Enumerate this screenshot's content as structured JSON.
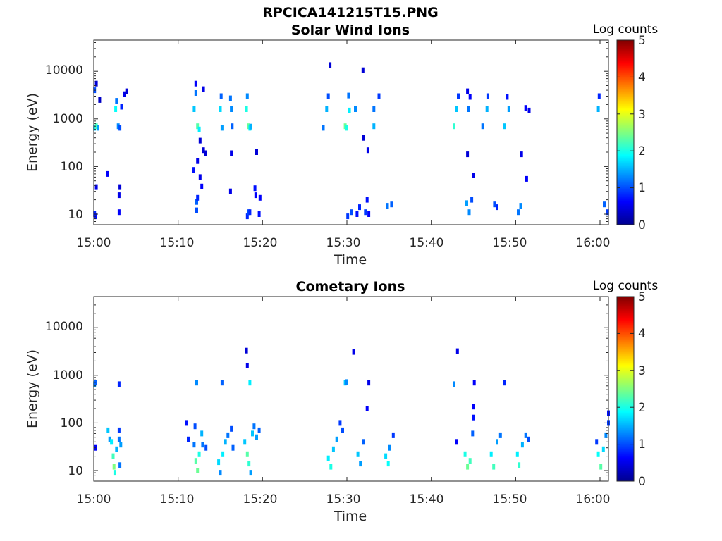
{
  "figure_title": "RPCICA141215T15.PNG",
  "chart_data": [
    {
      "type": "heatmap",
      "title": "Solar Wind Ions",
      "xlabel": "Time",
      "ylabel": "Energy (eV)",
      "x_ticks": [
        "15:00",
        "15:10",
        "15:20",
        "15:30",
        "15:40",
        "15:50",
        "16:00"
      ],
      "y_ticks": [
        "10",
        "100",
        "1000",
        "10000"
      ],
      "xlim": [
        "15:00",
        "16:01"
      ],
      "ylim": [
        6,
        45000
      ],
      "y_scale": "log",
      "colorbar": {
        "title": "Log counts",
        "min": 0,
        "max": 5,
        "ticks": [
          "0",
          "1",
          "2",
          "3",
          "4",
          "5"
        ],
        "colormap": "jet"
      },
      "cells_description": "time (minutes after 15:00), energy (eV), log counts",
      "cells": [
        [
          0.1,
          650,
          1.6
        ],
        [
          0.3,
          700,
          2.2
        ],
        [
          0.5,
          650,
          1.4
        ],
        [
          0.1,
          4000,
          1.0
        ],
        [
          0.3,
          5500,
          0.4
        ],
        [
          0.1,
          10,
          0.8
        ],
        [
          0.2,
          9,
          0.7
        ],
        [
          0.3,
          37,
          0.5
        ],
        [
          0.7,
          2500,
          0.3
        ],
        [
          1.6,
          70,
          0.6
        ],
        [
          2.6,
          1600,
          1.9
        ],
        [
          2.7,
          2400,
          1.2
        ],
        [
          2.9,
          700,
          1.3
        ],
        [
          3.1,
          650,
          1.0
        ],
        [
          3.0,
          11,
          0.6
        ],
        [
          3.0,
          25,
          0.5
        ],
        [
          3.1,
          37,
          0.4
        ],
        [
          3.3,
          1800,
          0.8
        ],
        [
          3.6,
          3300,
          0.5
        ],
        [
          3.9,
          3800,
          0.4
        ],
        [
          11.9,
          1600,
          1.6
        ],
        [
          12.1,
          3500,
          1.2
        ],
        [
          12.1,
          5500,
          0.6
        ],
        [
          12.3,
          700,
          2.3
        ],
        [
          12.5,
          600,
          1.8
        ],
        [
          12.2,
          12,
          1.0
        ],
        [
          12.2,
          18,
          1.1
        ],
        [
          12.3,
          22,
          0.8
        ],
        [
          11.8,
          85,
          0.7
        ],
        [
          12.3,
          130,
          0.5
        ],
        [
          12.8,
          38,
          0.6
        ],
        [
          12.6,
          60,
          0.5
        ],
        [
          13.0,
          4200,
          0.5
        ],
        [
          13.0,
          220,
          0.4
        ],
        [
          13.2,
          190,
          0.4
        ],
        [
          12.6,
          350,
          0.4
        ],
        [
          15.0,
          1600,
          1.7
        ],
        [
          15.1,
          3000,
          1.1
        ],
        [
          15.2,
          650,
          1.4
        ],
        [
          16.2,
          2700,
          1.2
        ],
        [
          16.3,
          1600,
          1.3
        ],
        [
          16.4,
          700,
          1.1
        ],
        [
          16.2,
          30,
          0.5
        ],
        [
          16.3,
          190,
          0.5
        ],
        [
          18.1,
          1600,
          2.0
        ],
        [
          18.2,
          3000,
          1.3
        ],
        [
          18.3,
          700,
          2.4
        ],
        [
          18.5,
          650,
          1.8
        ],
        [
          18.6,
          690,
          1.5
        ],
        [
          18.2,
          9,
          0.8
        ],
        [
          18.3,
          11,
          1.0
        ],
        [
          18.5,
          11,
          0.8
        ],
        [
          19.1,
          35,
          0.7
        ],
        [
          19.2,
          25,
          0.6
        ],
        [
          19.6,
          10,
          0.7
        ],
        [
          19.7,
          22,
          0.6
        ],
        [
          19.3,
          200,
          0.4
        ],
        [
          27.2,
          650,
          1.2
        ],
        [
          27.6,
          1600,
          1.5
        ],
        [
          27.8,
          3000,
          1.0
        ],
        [
          28.0,
          13500,
          0.4
        ],
        [
          29.8,
          700,
          2.4
        ],
        [
          30.0,
          650,
          2.0
        ],
        [
          30.3,
          1500,
          1.8
        ],
        [
          30.2,
          3100,
          1.2
        ],
        [
          30.1,
          9,
          0.9
        ],
        [
          30.5,
          11,
          1.0
        ],
        [
          31.2,
          10,
          0.7
        ],
        [
          31.5,
          14,
          0.8
        ],
        [
          32.2,
          11,
          0.9
        ],
        [
          32.4,
          20,
          0.7
        ],
        [
          32.6,
          10,
          0.6
        ],
        [
          31.0,
          1600,
          1.3
        ],
        [
          31.9,
          10500,
          0.4
        ],
        [
          32.5,
          220,
          0.5
        ],
        [
          32.0,
          400,
          0.4
        ],
        [
          33.2,
          700,
          1.5
        ],
        [
          33.2,
          1600,
          1.2
        ],
        [
          33.8,
          3000,
          0.9
        ],
        [
          34.8,
          15,
          1.2
        ],
        [
          35.3,
          16,
          1.1
        ],
        [
          42.7,
          700,
          2.1
        ],
        [
          43.0,
          1600,
          1.6
        ],
        [
          43.2,
          3000,
          0.9
        ],
        [
          44.4,
          1600,
          1.2
        ],
        [
          44.3,
          3800,
          0.5
        ],
        [
          44.6,
          2900,
          0.6
        ],
        [
          44.2,
          17,
          1.4
        ],
        [
          44.5,
          11,
          1.3
        ],
        [
          44.8,
          20,
          1.0
        ],
        [
          44.3,
          180,
          0.4
        ],
        [
          45.0,
          65,
          0.5
        ],
        [
          46.1,
          700,
          1.2
        ],
        [
          46.6,
          1600,
          1.5
        ],
        [
          46.7,
          3000,
          0.9
        ],
        [
          47.5,
          16,
          1.0
        ],
        [
          47.8,
          14,
          0.8
        ],
        [
          48.7,
          700,
          1.6
        ],
        [
          49.2,
          1600,
          1.4
        ],
        [
          49.0,
          2900,
          0.7
        ],
        [
          50.3,
          11,
          1.2
        ],
        [
          50.6,
          15,
          1.3
        ],
        [
          51.3,
          55,
          0.6
        ],
        [
          50.7,
          180,
          0.5
        ],
        [
          51.2,
          1700,
          0.6
        ],
        [
          51.6,
          1500,
          0.5
        ],
        [
          59.8,
          1600,
          1.5
        ],
        [
          59.9,
          3000,
          0.8
        ],
        [
          60.5,
          16,
          1.1
        ],
        [
          60.9,
          11,
          0.9
        ]
      ]
    },
    {
      "type": "heatmap",
      "title": "Cometary Ions",
      "xlabel": "Time",
      "ylabel": "Energy (eV)",
      "x_ticks": [
        "15:00",
        "15:10",
        "15:20",
        "15:30",
        "15:40",
        "15:50",
        "16:00"
      ],
      "y_ticks": [
        "10",
        "100",
        "1000",
        "10000"
      ],
      "xlim": [
        "15:00",
        "16:01"
      ],
      "ylim": [
        6,
        45000
      ],
      "y_scale": "log",
      "colorbar": {
        "title": "Log counts",
        "min": 0,
        "max": 5,
        "ticks": [
          "0",
          "1",
          "2",
          "3",
          "4",
          "5"
        ],
        "colormap": "jet"
      },
      "cells_description": "time (minutes after 15:00), energy (eV), log counts",
      "cells": [
        [
          0.1,
          650,
          1.4
        ],
        [
          0.2,
          700,
          1.1
        ],
        [
          3.0,
          650,
          0.8
        ],
        [
          0.2,
          30,
          0.6
        ],
        [
          1.7,
          70,
          1.6
        ],
        [
          1.9,
          45,
          1.4
        ],
        [
          2.1,
          40,
          1.8
        ],
        [
          2.3,
          20,
          2.2
        ],
        [
          2.4,
          12,
          2.5
        ],
        [
          2.5,
          9,
          2.0
        ],
        [
          2.7,
          28,
          1.5
        ],
        [
          3.0,
          45,
          1.2
        ],
        [
          3.2,
          35,
          1.4
        ],
        [
          3.0,
          70,
          0.9
        ],
        [
          3.1,
          13,
          1.2
        ],
        [
          11.0,
          100,
          0.7
        ],
        [
          11.2,
          45,
          0.8
        ],
        [
          11.9,
          35,
          1.2
        ],
        [
          12.1,
          16,
          2.3
        ],
        [
          12.3,
          10,
          2.4
        ],
        [
          12.5,
          22,
          2.0
        ],
        [
          12.8,
          60,
          1.5
        ],
        [
          12.9,
          35,
          1.2
        ],
        [
          12.2,
          700,
          1.3
        ],
        [
          12.0,
          85,
          1.0
        ],
        [
          13.3,
          30,
          1.0
        ],
        [
          14.8,
          15,
          1.7
        ],
        [
          15.0,
          9,
          1.3
        ],
        [
          15.3,
          22,
          1.8
        ],
        [
          15.6,
          40,
          1.5
        ],
        [
          15.9,
          55,
          1.2
        ],
        [
          16.3,
          75,
          1.0
        ],
        [
          16.5,
          30,
          1.1
        ],
        [
          15.2,
          700,
          1.1
        ],
        [
          17.9,
          40,
          1.6
        ],
        [
          18.2,
          22,
          2.3
        ],
        [
          18.4,
          14,
          2.1
        ],
        [
          18.6,
          9,
          1.4
        ],
        [
          18.8,
          60,
          1.6
        ],
        [
          19.0,
          85,
          1.2
        ],
        [
          19.3,
          50,
          1.4
        ],
        [
          19.6,
          70,
          1.1
        ],
        [
          18.5,
          700,
          1.8
        ],
        [
          18.2,
          1600,
          0.5
        ],
        [
          18.1,
          3300,
          0.4
        ],
        [
          27.8,
          18,
          1.8
        ],
        [
          28.1,
          12,
          2.0
        ],
        [
          28.4,
          28,
          1.6
        ],
        [
          28.8,
          45,
          1.4
        ],
        [
          29.2,
          100,
          0.9
        ],
        [
          29.5,
          70,
          1.0
        ],
        [
          29.8,
          700,
          1.6
        ],
        [
          30.0,
          720,
          1.3
        ],
        [
          30.8,
          3100,
          0.5
        ],
        [
          31.3,
          22,
          1.6
        ],
        [
          31.6,
          14,
          1.4
        ],
        [
          32.0,
          40,
          1.1
        ],
        [
          32.4,
          200,
          0.6
        ],
        [
          32.6,
          700,
          0.5
        ],
        [
          34.6,
          20,
          1.7
        ],
        [
          34.9,
          14,
          1.9
        ],
        [
          35.1,
          30,
          1.3
        ],
        [
          35.5,
          55,
          0.9
        ],
        [
          42.7,
          650,
          1.3
        ],
        [
          43.1,
          3200,
          0.5
        ],
        [
          43.0,
          40,
          0.6
        ],
        [
          44.0,
          22,
          2.0
        ],
        [
          44.3,
          12,
          2.4
        ],
        [
          44.6,
          16,
          2.2
        ],
        [
          44.9,
          60,
          1.1
        ],
        [
          45.0,
          220,
          0.6
        ],
        [
          45.0,
          130,
          0.7
        ],
        [
          45.1,
          700,
          0.6
        ],
        [
          47.1,
          22,
          1.8
        ],
        [
          47.4,
          12,
          2.2
        ],
        [
          47.8,
          40,
          1.4
        ],
        [
          48.2,
          55,
          1.2
        ],
        [
          48.7,
          700,
          0.8
        ],
        [
          50.2,
          22,
          1.8
        ],
        [
          50.4,
          13,
          2.1
        ],
        [
          50.8,
          35,
          1.5
        ],
        [
          51.2,
          55,
          1.2
        ],
        [
          51.5,
          45,
          1.0
        ],
        [
          59.8,
          22,
          1.9
        ],
        [
          60.1,
          12,
          2.3
        ],
        [
          60.4,
          28,
          1.7
        ],
        [
          60.7,
          55,
          1.3
        ],
        [
          61.0,
          100,
          0.9
        ],
        [
          61.0,
          160,
          0.7
        ],
        [
          59.6,
          40,
          0.9
        ]
      ]
    }
  ]
}
